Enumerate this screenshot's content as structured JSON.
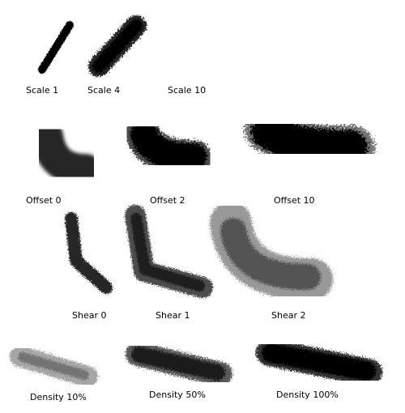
{
  "rows": [
    {
      "name": "scale",
      "samples": [
        {
          "label": "Scale 1"
        },
        {
          "label": "Scale 4"
        },
        {
          "label": "Scale 10"
        }
      ]
    },
    {
      "name": "offset",
      "samples": [
        {
          "label": "Offset 0"
        },
        {
          "label": "Offset 2"
        },
        {
          "label": "Offset 10"
        }
      ]
    },
    {
      "name": "shear",
      "samples": [
        {
          "label": "Shear 0"
        },
        {
          "label": "Shear 1"
        },
        {
          "label": "Shear 2"
        }
      ]
    },
    {
      "name": "density",
      "samples": [
        {
          "label": "Density 10%"
        },
        {
          "label": "Density 50%"
        },
        {
          "label": "Density 100%"
        }
      ]
    }
  ],
  "colors": {
    "background": "#ffffff",
    "ink": "#000000"
  }
}
